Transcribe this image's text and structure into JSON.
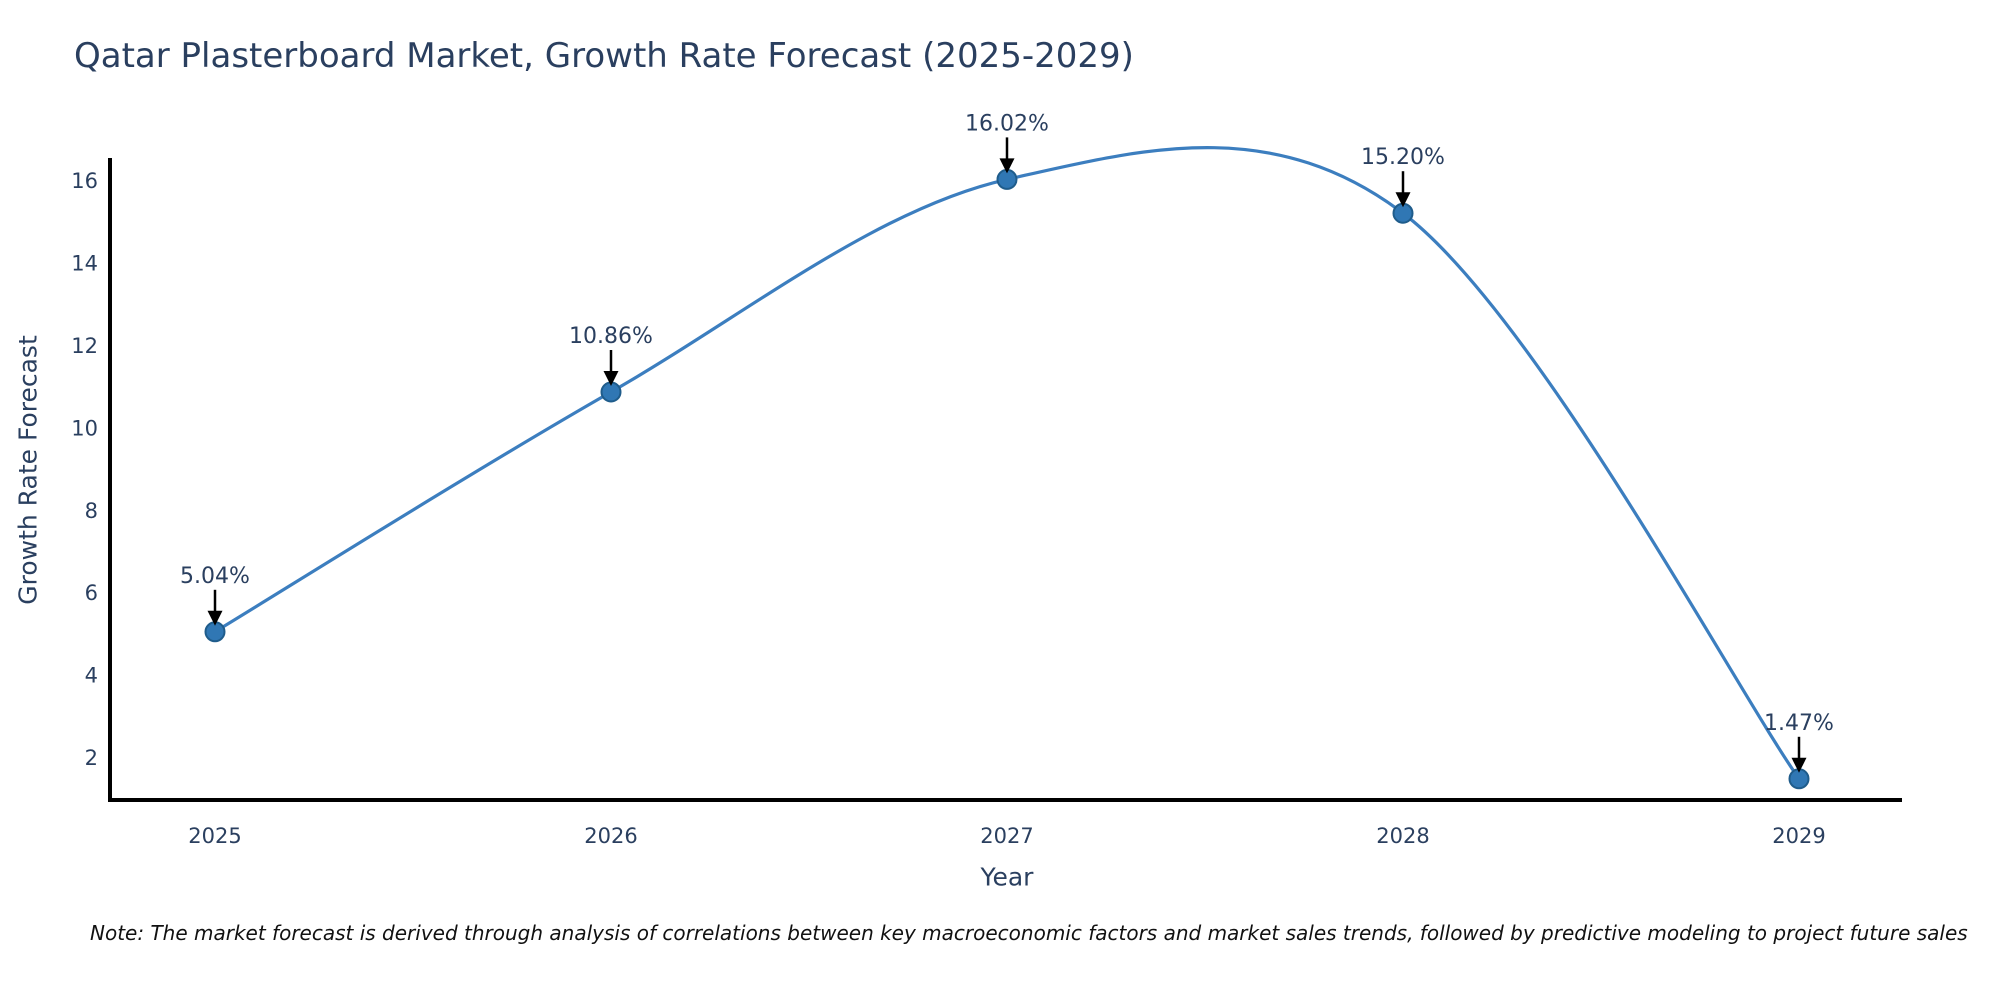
{
  "title": "Qatar Plasterboard Market, Growth Rate Forecast (2025-2029)",
  "note": "Note: The market forecast is derived through analysis of correlations between key macroeconomic factors and market sales trends, followed by predictive modeling to project future sales",
  "chart_data": {
    "type": "line",
    "title": "Qatar Plasterboard Market, Growth Rate Forecast (2025-2029)",
    "xlabel": "Year",
    "ylabel": "Growth Rate Forecast",
    "x": [
      2025,
      2026,
      2027,
      2028,
      2029
    ],
    "y": [
      5.04,
      10.86,
      16.02,
      15.2,
      1.47
    ],
    "point_labels": [
      "5.04%",
      "10.86%",
      "16.02%",
      "15.20%",
      "1.47%"
    ],
    "xticks": [
      "2025",
      "2026",
      "2027",
      "2028",
      "2029"
    ],
    "yticks": [
      2,
      4,
      6,
      8,
      10,
      12,
      14,
      16
    ],
    "xlim": [
      2024.73,
      2029.26
    ],
    "ylim": [
      0.95,
      16.55
    ],
    "grid": false,
    "legend": false,
    "line_style": "smooth-spline",
    "marker": "circle",
    "annotation_arrows": true,
    "colors": {
      "line": "#3c7ebf",
      "marker_fill": "#3077b4",
      "marker_edge": "#1f5c8b",
      "arrow": "#000000",
      "axis": "#000000",
      "text": "#2a3f5f",
      "note_text": "#111111",
      "background": "#ffffff"
    }
  }
}
